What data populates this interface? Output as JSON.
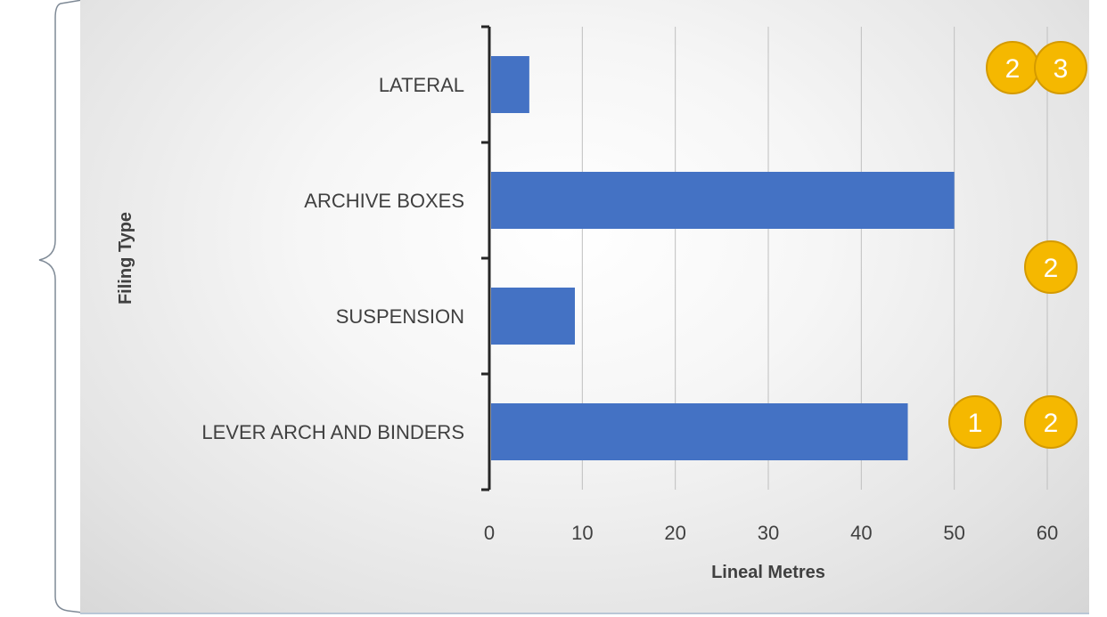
{
  "chart_data": {
    "type": "bar",
    "orientation": "horizontal",
    "categories": [
      "LEVER ARCH AND BINDERS",
      "SUSPENSION",
      "ARCHIVE BOXES",
      "LATERAL"
    ],
    "values": [
      45,
      9.2,
      50,
      4.3
    ],
    "xlabel": "Lineal Metres",
    "ylabel": "Filing Type",
    "xlim": [
      0,
      60
    ],
    "xticks": [
      0,
      10,
      20,
      30,
      40,
      50,
      60
    ],
    "grid": "vertical",
    "legend": "none",
    "bar_color": "#4472c4"
  },
  "badges": [
    {
      "row": "LATERAL",
      "labels": [
        "2",
        "3"
      ]
    },
    {
      "row": "between ARCHIVE BOXES and SUSPENSION",
      "labels": [
        "2"
      ]
    },
    {
      "row": "LEVER ARCH AND BINDERS",
      "labels": [
        "1",
        "2"
      ]
    }
  ],
  "colors": {
    "bar": "#4472c4",
    "badge_fill": "#f5b800",
    "badge_stroke": "#d49a00",
    "grid": "#bfbfbf",
    "axis": "#262626",
    "text": "#404040"
  }
}
